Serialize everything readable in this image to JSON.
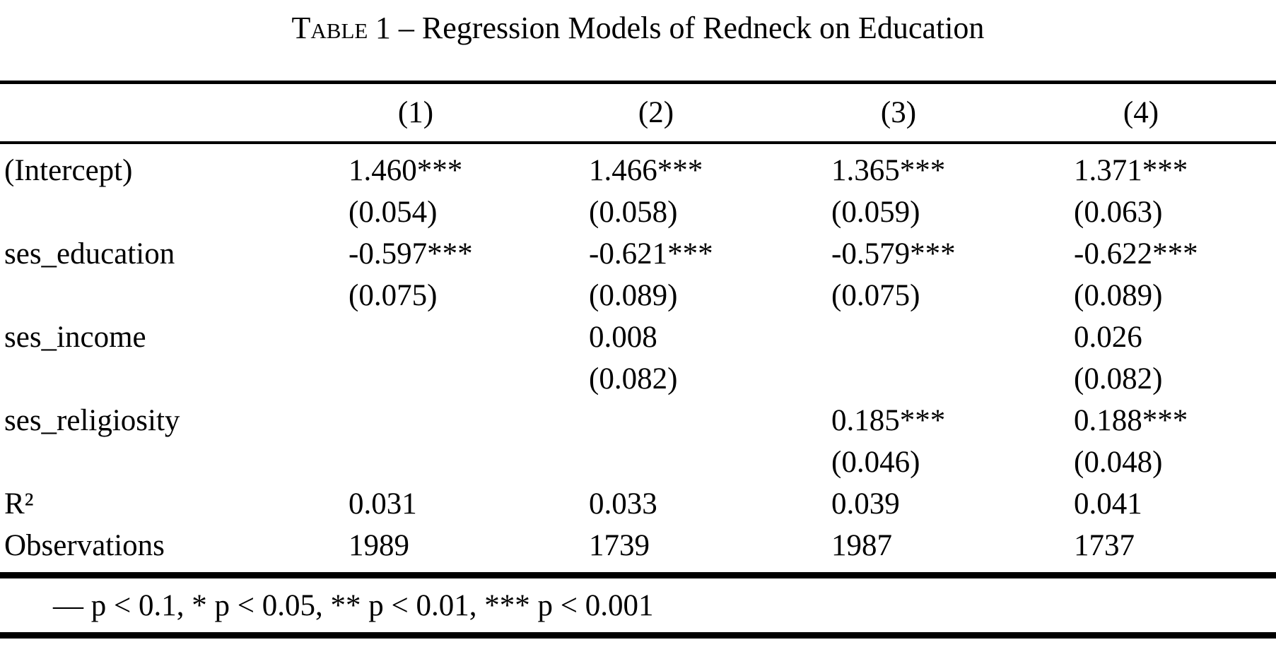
{
  "title": {
    "label": "Table",
    "rest": "1 – Regression Models of Redneck on Education"
  },
  "table": {
    "columns": [
      "(1)",
      "(2)",
      "(3)",
      "(4)"
    ],
    "rows": [
      {
        "label": "(Intercept)",
        "est": [
          "1.460***",
          "1.466***",
          "1.365***",
          "1.371***"
        ],
        "se": [
          "(0.054)",
          "(0.058)",
          "(0.059)",
          "(0.063)"
        ]
      },
      {
        "label": "ses_education",
        "est": [
          "-0.597***",
          "-0.621***",
          "-0.579***",
          "-0.622***"
        ],
        "se": [
          "(0.075)",
          "(0.089)",
          "(0.075)",
          "(0.089)"
        ]
      },
      {
        "label": "ses_income",
        "est": [
          "",
          "0.008",
          "",
          "0.026"
        ],
        "se": [
          "",
          "(0.082)",
          "",
          "(0.082)"
        ]
      },
      {
        "label": "ses_religiosity",
        "est": [
          "",
          "",
          "0.185***",
          "0.188***"
        ],
        "se": [
          "",
          "",
          "(0.046)",
          "(0.048)"
        ]
      }
    ],
    "gof": [
      {
        "label": "R²",
        "values": [
          "0.031",
          "0.033",
          "0.039",
          "0.041"
        ]
      },
      {
        "label": "Observations",
        "values": [
          "1989",
          "1739",
          "1987",
          "1737"
        ]
      }
    ],
    "footnote": "— p < 0.1, * p < 0.05, ** p < 0.01, *** p < 0.001"
  }
}
